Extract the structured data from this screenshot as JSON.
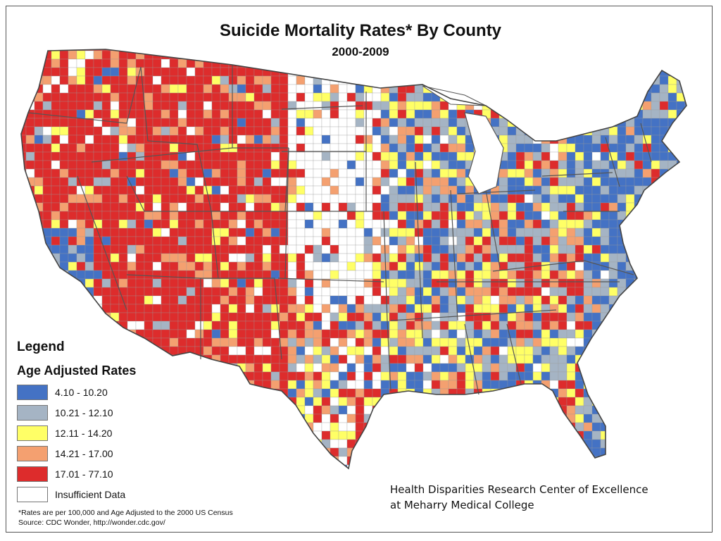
{
  "map": {
    "title": "Suicide Mortality Rates* By County",
    "subtitle": "2000-2009",
    "legend": {
      "title": "Legend",
      "subtitle": "Age Adjusted Rates",
      "items": [
        {
          "label": "4.10 - 10.20",
          "color": "#4472c4"
        },
        {
          "label": "10.21 - 12.10",
          "color": "#a5b4c4"
        },
        {
          "label": "12.11 - 14.20",
          "color": "#ffff66"
        },
        {
          "label": "14.21 - 17.00",
          "color": "#f4a070"
        },
        {
          "label": "17.01 - 77.10",
          "color": "#dd2c2c"
        },
        {
          "label": "Insufficient Data",
          "color": "#ffffff"
        }
      ]
    },
    "footnote": "*Rates are per 100,000 and Age Adjusted to the 2000 US Census",
    "source": "Source: CDC Wonder, http://wonder.cdc.gov/",
    "credit_line1": "Health Disparities Research Center of Excellence",
    "credit_line2": "at Meharry Medical College"
  }
}
